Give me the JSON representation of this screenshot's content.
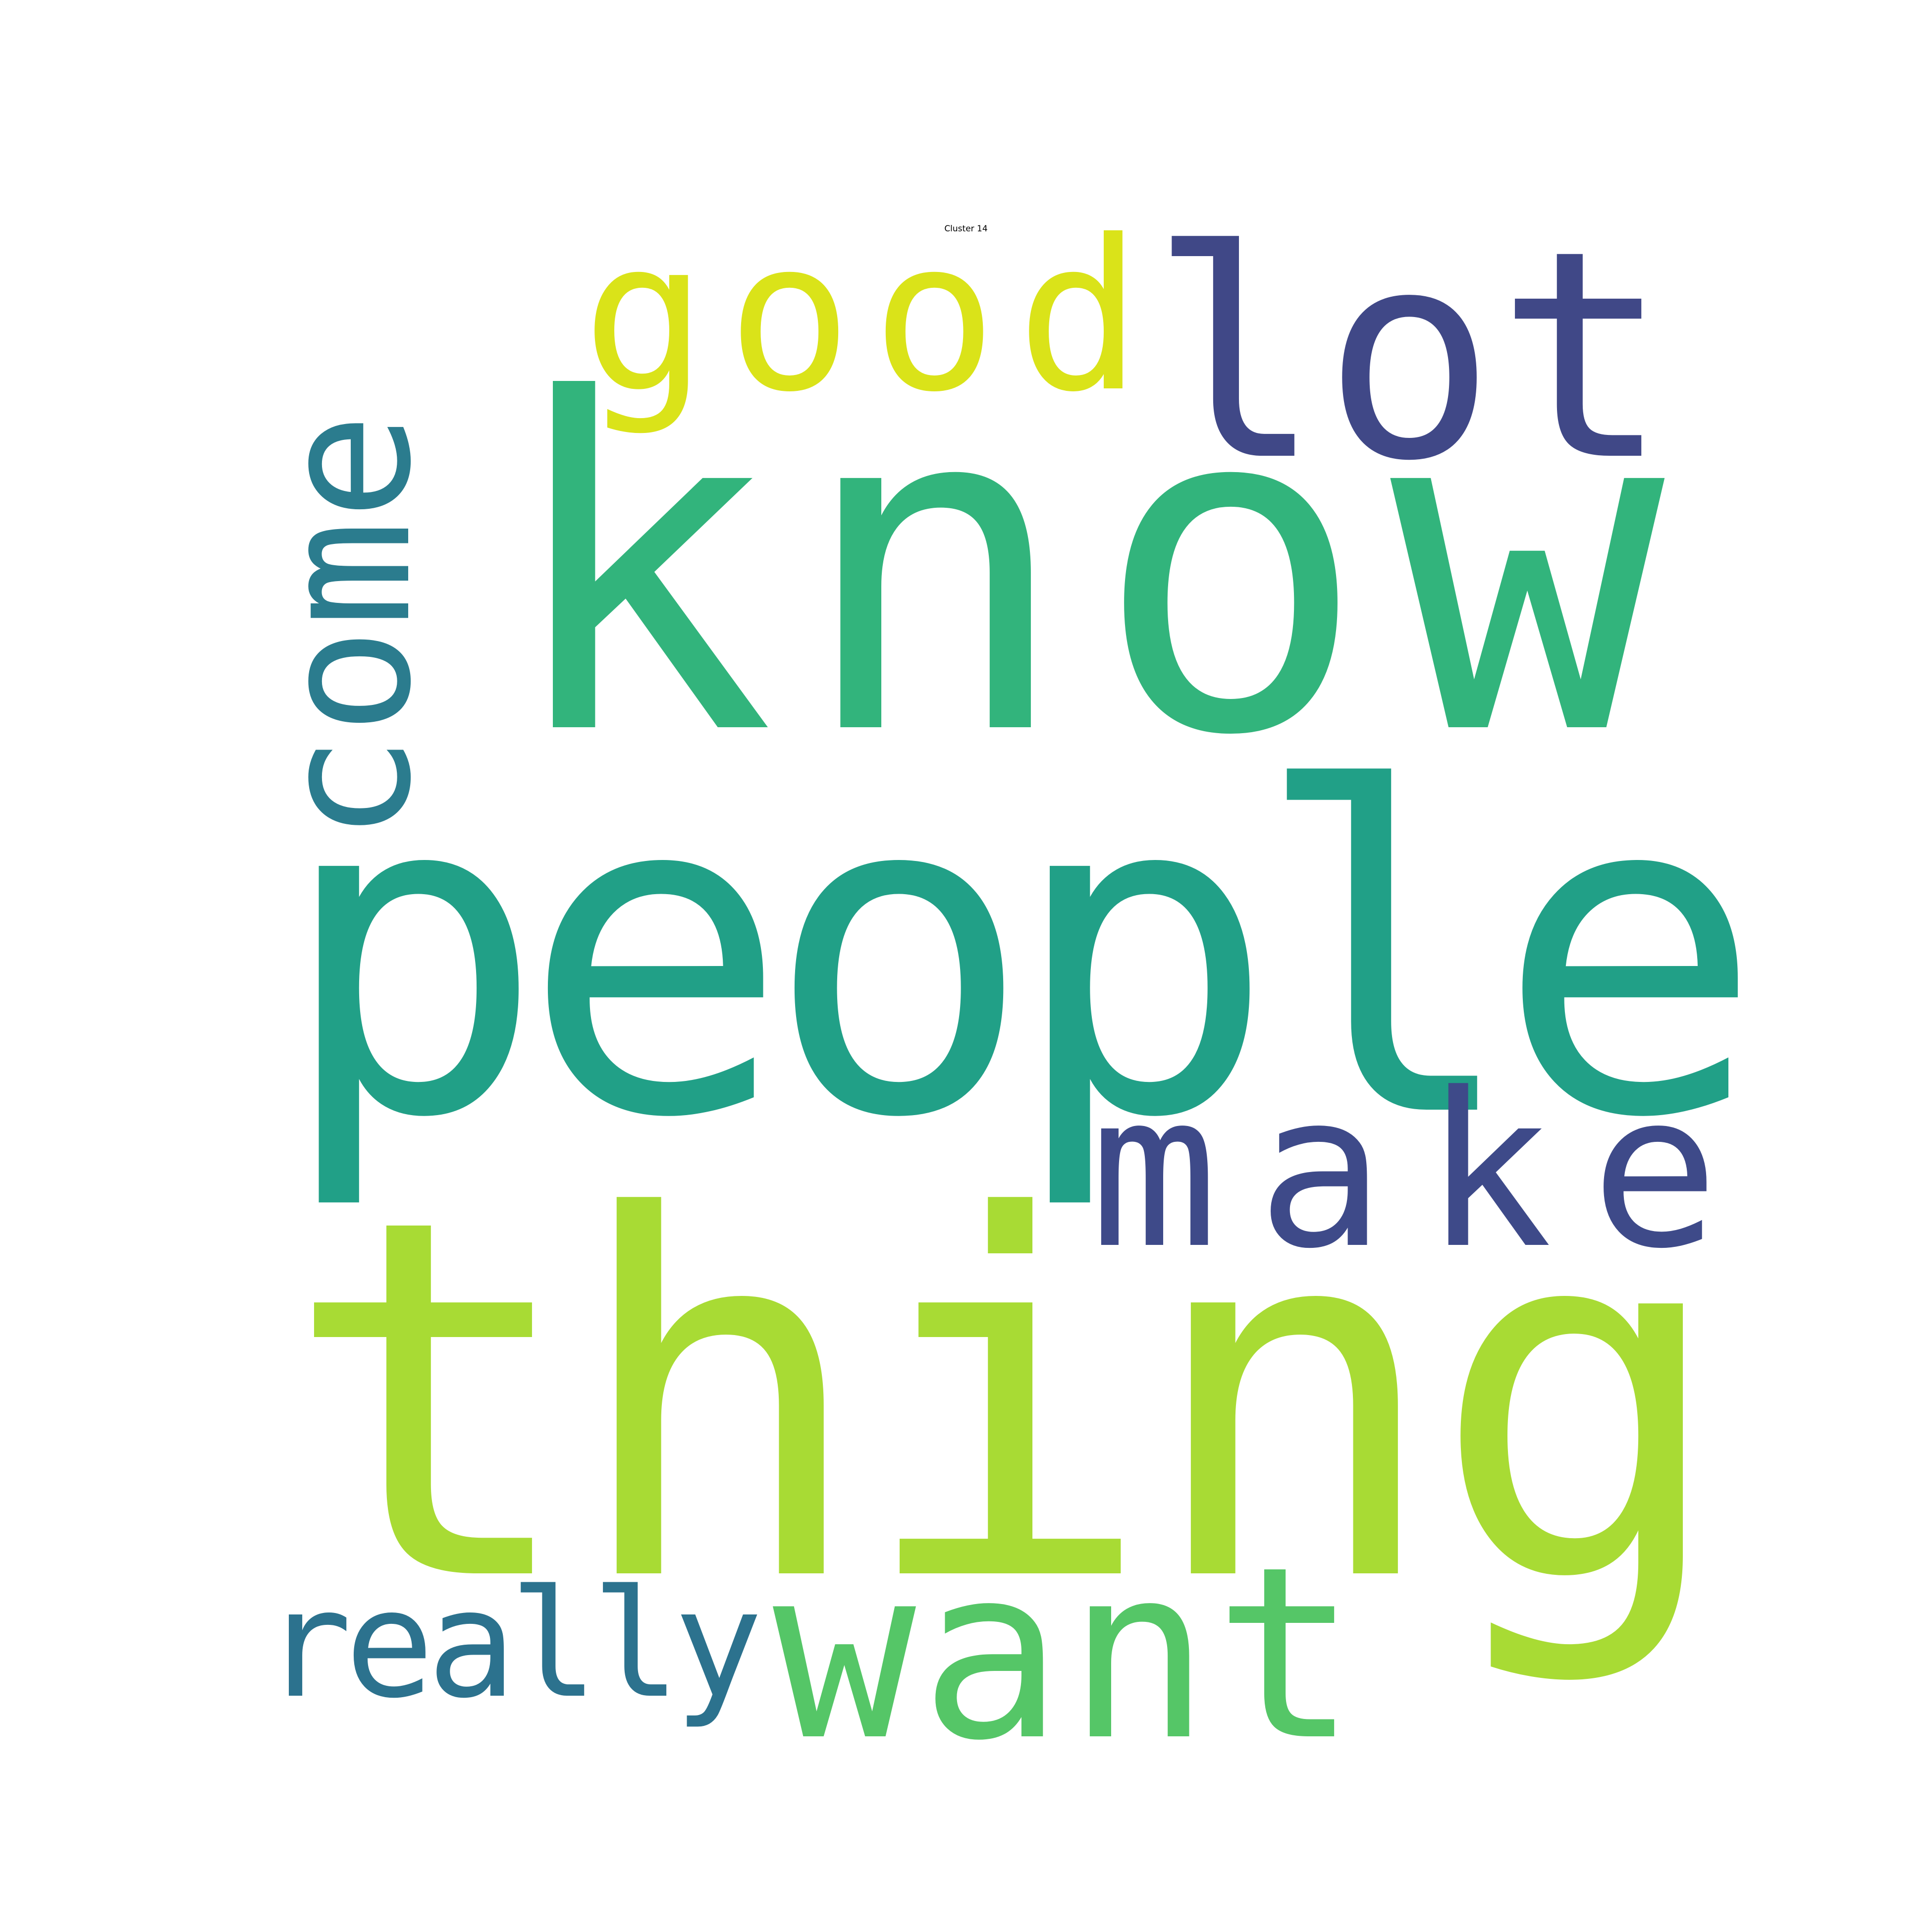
{
  "title": "Cluster 14",
  "words": [
    {
      "key": "thing",
      "text": "thing",
      "color": "#a8db34",
      "orientation": "horizontal"
    },
    {
      "key": "people",
      "text": "people",
      "color": "#21a087",
      "orientation": "horizontal"
    },
    {
      "key": "know",
      "text": "know",
      "color": "#32b47c",
      "orientation": "horizontal"
    },
    {
      "key": "lot",
      "text": "lot",
      "color": "#404887",
      "orientation": "horizontal"
    },
    {
      "key": "good",
      "text": "good",
      "color": "#dae319",
      "orientation": "horizontal"
    },
    {
      "key": "come",
      "text": "come",
      "color": "#2b7c8e",
      "orientation": "vertical"
    },
    {
      "key": "make",
      "text": "make",
      "color": "#3e4a89",
      "orientation": "horizontal"
    },
    {
      "key": "want",
      "text": "want",
      "color": "#55c667",
      "orientation": "horizontal"
    },
    {
      "key": "really",
      "text": "really",
      "color": "#2c728e",
      "orientation": "horizontal"
    }
  ]
}
